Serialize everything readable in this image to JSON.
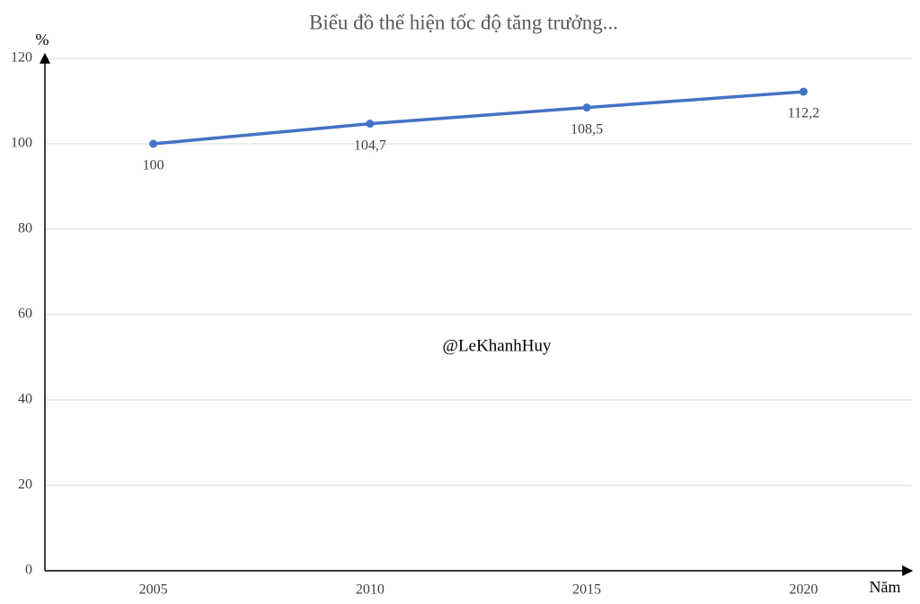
{
  "chart_data": {
    "type": "line",
    "title": "Biểu đồ thể hiện tốc độ tăng trưởng...",
    "y_label": "%",
    "x_label": "Năm",
    "annotation": "@LeKhanhHuy",
    "categories": [
      "2005",
      "2010",
      "2015",
      "2020"
    ],
    "values": [
      100,
      104.7,
      108.5,
      112.2
    ],
    "value_labels": [
      "100",
      "104,7",
      "108,5",
      "112,2"
    ],
    "color": "#4472c4",
    "ylim": [
      0,
      120
    ],
    "yticks": [
      0,
      20,
      40,
      60,
      80,
      100,
      120
    ],
    "grid": true
  }
}
